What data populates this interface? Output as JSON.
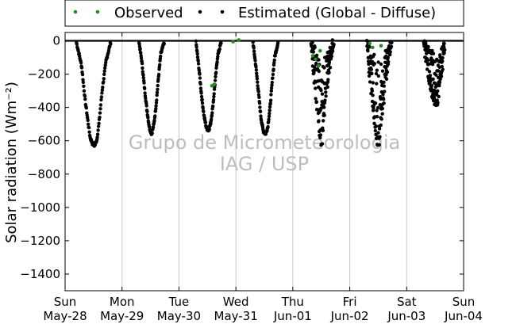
{
  "chart_data": {
    "type": "scatter",
    "ylabel": "Solar radiation (Wm⁻²)",
    "ylim": [
      -1500,
      50
    ],
    "yticks": [
      0,
      -200,
      -400,
      -600,
      -800,
      -1000,
      -1200,
      -1400
    ],
    "ytick_labels": [
      "0",
      "−200",
      "−400",
      "−600",
      "−800",
      "−1000",
      "−1200",
      "−1400"
    ],
    "xlim": [
      0,
      7
    ],
    "xticks": [
      {
        "x": 0,
        "day": "Sun",
        "date": "May-28"
      },
      {
        "x": 1,
        "day": "Mon",
        "date": "May-29"
      },
      {
        "x": 2,
        "day": "Tue",
        "date": "May-30"
      },
      {
        "x": 3,
        "day": "Wed",
        "date": "May-31"
      },
      {
        "x": 4,
        "day": "Thu",
        "date": "Jun-01"
      },
      {
        "x": 5,
        "day": "Fri",
        "date": "Jun-02"
      },
      {
        "x": 6,
        "day": "Sat",
        "date": "Jun-03"
      },
      {
        "x": 7,
        "day": "Sun",
        "date": "Jun-04"
      }
    ],
    "grid": "vertical",
    "legend_position": "top",
    "watermark": [
      "Grupo de Micrometeorologia",
      "IAG / USP"
    ],
    "series": [
      {
        "name": "Observed",
        "color": "#228b22",
        "points": [
          [
            2.58,
            -270
          ],
          [
            2.62,
            -262
          ],
          [
            2.95,
            -5
          ],
          [
            3.05,
            5
          ],
          [
            4.35,
            -90
          ],
          [
            4.4,
            -110
          ],
          [
            4.45,
            -150
          ],
          [
            4.48,
            -60
          ],
          [
            5.35,
            -15
          ],
          [
            5.4,
            -40
          ],
          [
            5.55,
            -30
          ]
        ]
      },
      {
        "name": "Estimated (Global - Diffuse)",
        "color": "#000000",
        "days": [
          {
            "x": [
              0.2,
              0.29,
              0.35,
              0.4,
              0.44,
              0.48,
              0.52,
              0.56,
              0.6,
              0.65,
              0.72,
              0.8
            ],
            "y": [
              -10,
              -150,
              -350,
              -480,
              -580,
              -615,
              -630,
              -590,
              -480,
              -300,
              -120,
              -10
            ]
          },
          {
            "x": [
              1.3,
              1.35,
              1.4,
              1.44,
              1.48,
              1.52,
              1.56,
              1.6,
              1.64,
              1.68,
              1.74
            ],
            "y": [
              -10,
              -130,
              -300,
              -420,
              -520,
              -560,
              -500,
              -380,
              -220,
              -80,
              -10
            ]
          },
          {
            "x": [
              2.3,
              2.35,
              2.4,
              2.44,
              2.48,
              2.52,
              2.56,
              2.6,
              2.64,
              2.68,
              2.74
            ],
            "y": [
              -10,
              -160,
              -340,
              -450,
              -520,
              -540,
              -490,
              -380,
              -230,
              -90,
              -10
            ]
          },
          {
            "x": [
              3.3,
              3.35,
              3.4,
              3.44,
              3.48,
              3.52,
              3.56,
              3.6,
              3.64,
              3.68,
              3.74
            ],
            "y": [
              -10,
              -150,
              -320,
              -460,
              -540,
              -560,
              -520,
              -400,
              -240,
              -100,
              -10
            ]
          },
          {
            "x": [
              4.32,
              4.36,
              4.4,
              4.44,
              4.48,
              4.52,
              4.56,
              4.6,
              4.65,
              4.7
            ],
            "y": [
              -20,
              -150,
              -310,
              -420,
              -600,
              -580,
              -350,
              -250,
              -120,
              -20
            ]
          },
          {
            "x": [
              5.3,
              5.35,
              5.4,
              5.44,
              5.48,
              5.52,
              5.56,
              5.6,
              5.65,
              5.72
            ],
            "y": [
              -20,
              -200,
              -360,
              -480,
              -600,
              -580,
              -420,
              -300,
              -150,
              -20
            ]
          },
          {
            "x": [
              6.3,
              6.35,
              6.4,
              6.45,
              6.5,
              6.55,
              6.6,
              6.66
            ],
            "y": [
              -20,
              -120,
              -220,
              -300,
              -360,
              -340,
              -200,
              -30
            ]
          }
        ]
      }
    ]
  }
}
